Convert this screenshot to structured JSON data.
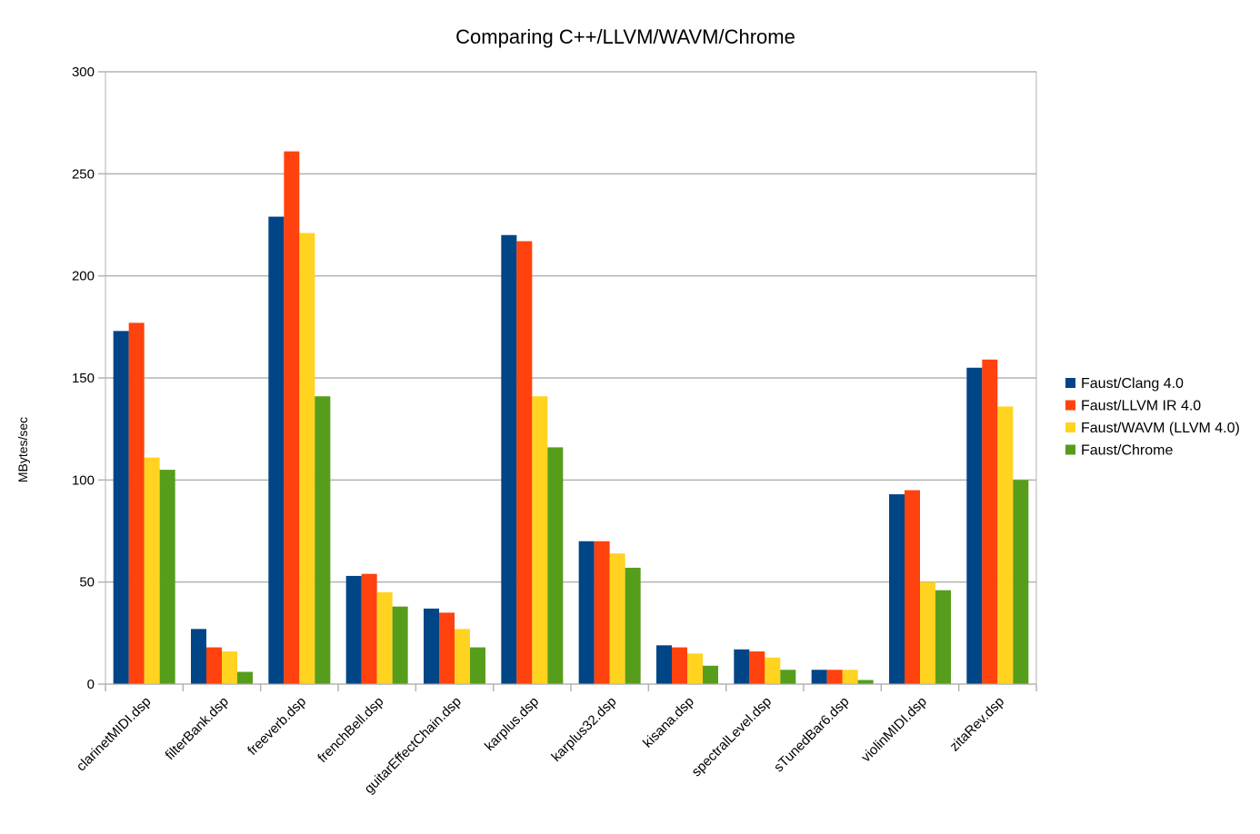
{
  "chart_data": {
    "type": "bar",
    "title": "Comparing C++/LLVM/WAVM/Chrome",
    "xlabel": "",
    "ylabel": "MBytes/sec",
    "ylim": [
      0,
      300
    ],
    "yticks": [
      0,
      50,
      100,
      150,
      200,
      250,
      300
    ],
    "grid": true,
    "legend_position": "right",
    "categories": [
      "clarinetMIDI.dsp",
      "filterBank.dsp",
      "freeverb.dsp",
      "frenchBell.dsp",
      "guitarEffectChain.dsp",
      "karplus.dsp",
      "karplus32.dsp",
      "kisana.dsp",
      "spectralLevel.dsp",
      "sTunedBar6.dsp",
      "violinMIDI.dsp",
      "zitaRev.dsp"
    ],
    "series": [
      {
        "name": "Faust/Clang 4.0",
        "color": "#004586",
        "values": [
          173,
          27,
          229,
          53,
          37,
          220,
          70,
          19,
          17,
          7,
          93,
          155
        ]
      },
      {
        "name": "Faust/LLVM IR 4.0",
        "color": "#ff420e",
        "values": [
          177,
          18,
          261,
          54,
          35,
          217,
          70,
          18,
          16,
          7,
          95,
          159
        ]
      },
      {
        "name": "Faust/WAVM (LLVM 4.0)",
        "color": "#ffd320",
        "values": [
          111,
          16,
          221,
          45,
          27,
          141,
          64,
          15,
          13,
          7,
          50,
          136
        ]
      },
      {
        "name": "Faust/Chrome",
        "color": "#579d1c",
        "values": [
          105,
          6,
          141,
          38,
          18,
          116,
          57,
          9,
          7,
          2,
          46,
          100
        ]
      }
    ]
  }
}
